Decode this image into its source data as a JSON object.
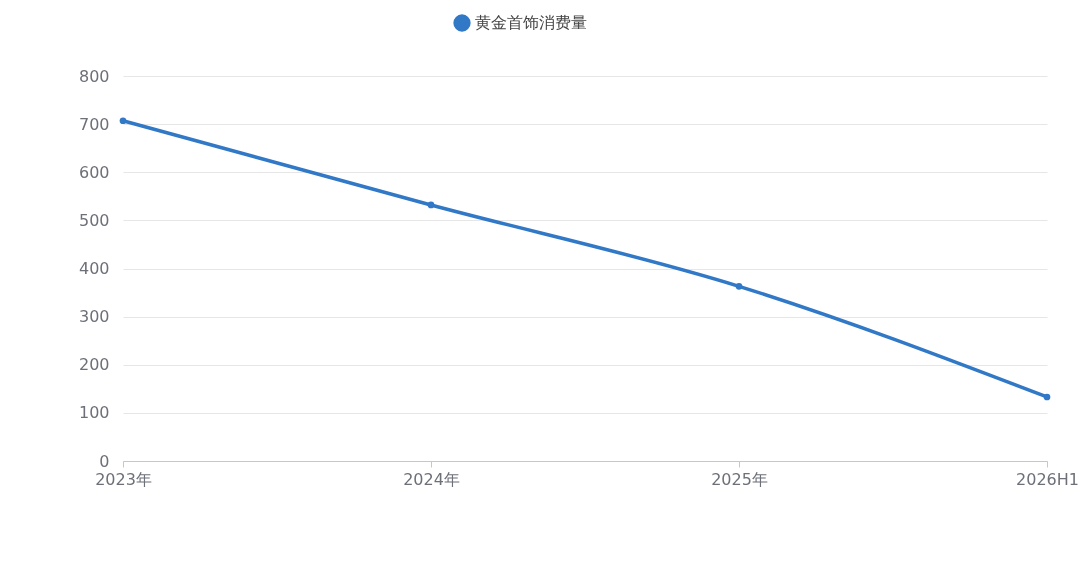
{
  "chart_data": {
    "type": "line",
    "categories": [
      "2023年",
      "2024年",
      "2025年",
      "2026H1"
    ],
    "series": [
      {
        "name": "黄金首饰消费量",
        "color": "#3178c6",
        "values": [
          707,
          532,
          363,
          133
        ]
      }
    ],
    "ylim": [
      0,
      800
    ],
    "yticks": [
      0,
      100,
      200,
      300,
      400,
      500,
      600,
      700,
      800
    ],
    "grid": "y",
    "legend": "top",
    "marker": "circle",
    "line_style": "solid"
  }
}
